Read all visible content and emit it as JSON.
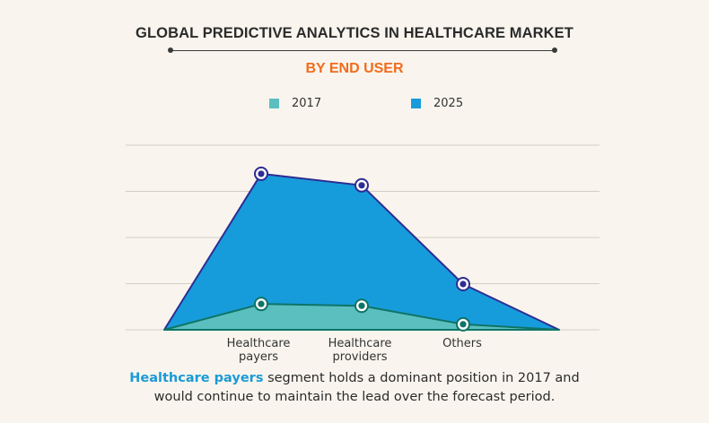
{
  "header": {
    "title": "GLOBAL PREDICTIVE ANALYTICS IN HEALTHCARE MARKET",
    "subtitle": "BY END USER"
  },
  "colors": {
    "background": "#f9f5ee",
    "subtitle": "#f26b1d",
    "series_2017_fill": "#5bbfc0",
    "series_2017_line": "#0e7466",
    "series_2025_fill": "#179cdb",
    "series_2025_line": "#2e2d93",
    "highlight_text": "#1b9ad6"
  },
  "chart_data": {
    "type": "area",
    "title": "GLOBAL PREDICTIVE ANALYTICS IN HEALTHCARE MARKET",
    "subtitle": "BY END USER",
    "categories": [
      "",
      "Healthcare payers",
      "Healthcare providers",
      "Others",
      ""
    ],
    "category_labels": [
      {
        "line1": "Healthcare",
        "line2": "payers"
      },
      {
        "line1": "Healthcare",
        "line2": "providers"
      },
      {
        "line1": "Others",
        "line2": ""
      }
    ],
    "series": [
      {
        "name": "2025",
        "values": [
          0,
          3.38,
          3.13,
          0.99,
          0
        ]
      },
      {
        "name": "2017",
        "values": [
          0,
          0.56,
          0.52,
          0.12,
          0
        ]
      }
    ],
    "xlabel": "",
    "ylabel": "",
    "ylim": [
      0,
      4
    ],
    "y_units": "relative (no axis labels shown)",
    "grid": true,
    "legend": {
      "placement": "top-center",
      "entries": [
        "2017",
        "2025"
      ]
    }
  },
  "caption": {
    "highlight": "Healthcare payers",
    "rest_line1": " segment holds a dominant position in 2017 and",
    "line2": "would continue to maintain the lead over the forecast period."
  }
}
